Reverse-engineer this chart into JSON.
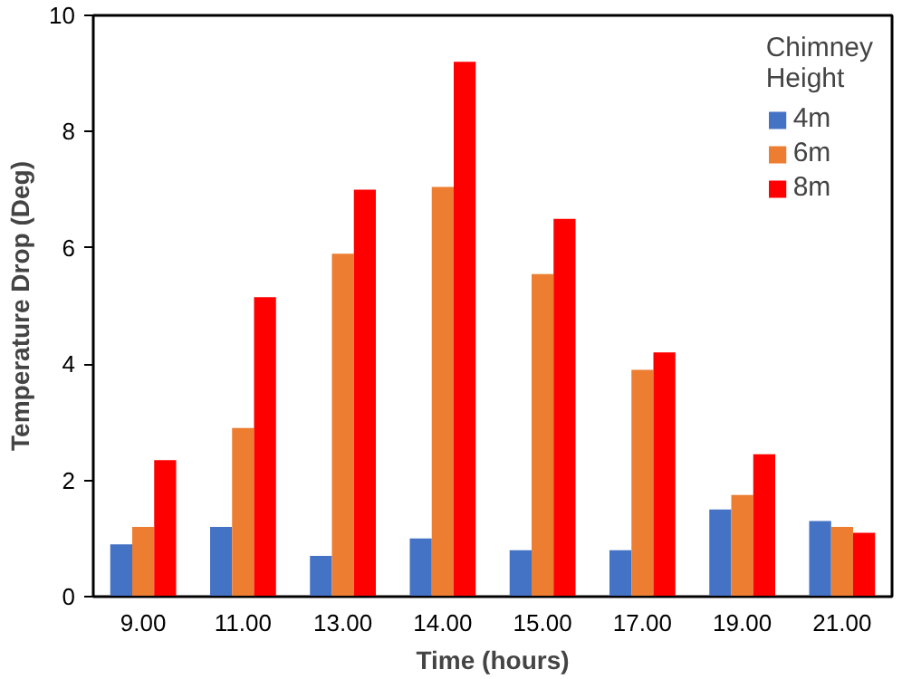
{
  "chart_data": {
    "type": "bar",
    "xlabel": "Time (hours)",
    "ylabel": "Temperature Drop (Deg)",
    "legend_title": "Chimney\nHeight",
    "categories": [
      "9.00",
      "11.00",
      "13.00",
      "14.00",
      "15.00",
      "17.00",
      "19.00",
      "21.00"
    ],
    "series": [
      {
        "name": "4m",
        "color": "#4472c4",
        "values": [
          0.9,
          1.2,
          0.7,
          1.0,
          0.8,
          0.8,
          1.5,
          1.3
        ]
      },
      {
        "name": "6m",
        "color": "#ed7d31",
        "values": [
          1.2,
          2.9,
          5.9,
          7.05,
          5.55,
          3.9,
          1.75,
          1.2
        ]
      },
      {
        "name": "8m",
        "color": "#ff0000",
        "values": [
          2.35,
          5.15,
          7.0,
          9.2,
          6.5,
          4.2,
          2.45,
          1.1
        ]
      }
    ],
    "ylim": [
      0,
      10
    ],
    "yticks": [
      0,
      2,
      4,
      6,
      8,
      10
    ],
    "grid": false,
    "legend": "top right"
  }
}
